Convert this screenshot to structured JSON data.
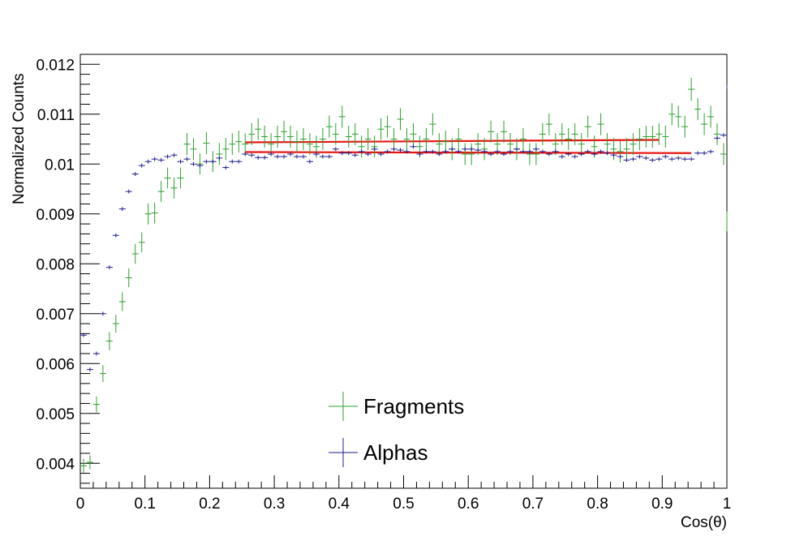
{
  "chart_data": {
    "type": "scatter",
    "xlabel": "Cos(θ)",
    "ylabel": "Normalized Counts",
    "xlim": [
      0,
      1
    ],
    "ylim": [
      0.0035,
      0.0122
    ],
    "x_ticks": [
      "0",
      "0.1",
      "0.2",
      "0.3",
      "0.4",
      "0.5",
      "0.6",
      "0.7",
      "0.8",
      "0.9",
      "1"
    ],
    "y_ticks": [
      "0.004",
      "0.005",
      "0.006",
      "0.007",
      "0.008",
      "0.009",
      "0.01",
      "0.011",
      "0.012"
    ],
    "bin_width": 0.01,
    "legend_position": "bottom-center",
    "series": [
      {
        "name": "Fragments",
        "color": "#2ca02c",
        "values": [
          0.00395,
          0.00402,
          0.00518,
          0.0058,
          0.00645,
          0.0068,
          0.00724,
          0.00772,
          0.0082,
          0.00843,
          0.009,
          0.00902,
          0.00945,
          0.00972,
          0.00952,
          0.00972,
          0.0104,
          0.0103,
          0.01,
          0.01042,
          0.01005,
          0.0102,
          0.0103,
          0.0104,
          0.01045,
          0.0104,
          0.0106,
          0.0107,
          0.01055,
          0.0104,
          0.01055,
          0.01065,
          0.01055,
          0.01045,
          0.0105,
          0.0104,
          0.01035,
          0.0105,
          0.01075,
          0.0106,
          0.01095,
          0.01055,
          0.0106,
          0.01035,
          0.0105,
          0.01035,
          0.0107,
          0.01075,
          0.0105,
          0.0109,
          0.0105,
          0.0106,
          0.01035,
          0.0105,
          0.0108,
          0.0104,
          0.01045,
          0.0103,
          0.0105,
          0.0102,
          0.0102,
          0.0104,
          0.0103,
          0.01065,
          0.0104,
          0.01065,
          0.0104,
          0.0103,
          0.0105,
          0.0102,
          0.0102,
          0.0106,
          0.0108,
          0.0104,
          0.0106,
          0.0105,
          0.0106,
          0.0104,
          0.01075,
          0.01035,
          0.0108,
          0.0104,
          0.0103,
          0.01025,
          0.0103,
          0.0104,
          0.0105,
          0.01055,
          0.01055,
          0.0106,
          0.01055,
          0.011,
          0.01095,
          0.01075,
          0.0115,
          0.0111,
          0.0108,
          0.01095,
          0.0106,
          0.0102,
          0.00885
        ],
        "errors": [
          0.00014,
          0.00014,
          0.00016,
          0.00017,
          0.00018,
          0.00018,
          0.00019,
          0.00019,
          0.0002,
          0.0002,
          0.00021,
          0.00021,
          0.00021,
          0.00021,
          0.00021,
          0.00021,
          0.00022,
          0.00022,
          0.00021,
          0.00022,
          0.00021,
          0.00022,
          0.00022,
          0.00022,
          0.00022,
          0.00022,
          0.00022,
          0.00022,
          0.00022,
          0.00022,
          0.00022,
          0.00022,
          0.00022,
          0.00022,
          0.00022,
          0.00022,
          0.00022,
          0.00022,
          0.00022,
          0.00022,
          0.00022,
          0.00022,
          0.00022,
          0.00022,
          0.00022,
          0.00022,
          0.00022,
          0.00022,
          0.00022,
          0.00022,
          0.00022,
          0.00022,
          0.00022,
          0.00022,
          0.00022,
          0.00022,
          0.00022,
          0.00022,
          0.00022,
          0.00022,
          0.00022,
          0.00022,
          0.00022,
          0.00022,
          0.00022,
          0.00022,
          0.00022,
          0.00022,
          0.00022,
          0.00022,
          0.00022,
          0.00022,
          0.00022,
          0.00022,
          0.00022,
          0.00022,
          0.00022,
          0.00022,
          0.00022,
          0.00022,
          0.00022,
          0.00022,
          0.00022,
          0.00022,
          0.00022,
          0.00022,
          0.00022,
          0.00022,
          0.00022,
          0.00022,
          0.00022,
          0.00022,
          0.00022,
          0.00022,
          0.00023,
          0.00022,
          0.00022,
          0.00022,
          0.00022,
          0.00022,
          0.0002
        ]
      },
      {
        "name": "Alphas",
        "color": "#1c1c8c",
        "values": [
          0.00657,
          0.00588,
          0.0062,
          0.007,
          0.00793,
          0.00857,
          0.0091,
          0.00945,
          0.0098,
          0.00997,
          0.01005,
          0.0101,
          0.01008,
          0.01015,
          0.01018,
          0.01005,
          0.0101,
          0.01,
          0.00997,
          0.01005,
          0.01005,
          0.01012,
          0.00993,
          0.01005,
          0.01005,
          0.0102,
          0.01018,
          0.01013,
          0.01013,
          0.0102,
          0.01015,
          0.01015,
          0.0102,
          0.01015,
          0.01015,
          0.01005,
          0.0102,
          0.01015,
          0.01015,
          0.0103,
          0.01022,
          0.01022,
          0.01018,
          0.01025,
          0.0102,
          0.0103,
          0.0102,
          0.01025,
          0.0103,
          0.01028,
          0.01025,
          0.01035,
          0.0102,
          0.01025,
          0.01025,
          0.0102,
          0.01025,
          0.0103,
          0.01025,
          0.0103,
          0.0103,
          0.01028,
          0.01025,
          0.0102,
          0.01025,
          0.0102,
          0.01025,
          0.0103,
          0.01025,
          0.01025,
          0.0103,
          0.01025,
          0.0102,
          0.01025,
          0.01015,
          0.0102,
          0.01015,
          0.0102,
          0.01025,
          0.0102,
          0.01025,
          0.01022,
          0.01018,
          0.01015,
          0.01008,
          0.0101,
          0.01015,
          0.01012,
          0.01008,
          0.0101,
          0.01015,
          0.0101,
          0.01012,
          0.0101,
          0.0101,
          0.01022,
          0.01022,
          0.01025,
          0.01052,
          0.01058,
          0.01155
        ],
        "errors": [
          4e-05,
          4e-05,
          4e-05,
          4e-05,
          4e-05,
          4e-05,
          4e-05,
          4e-05,
          4e-05,
          4e-05,
          4e-05,
          4e-05,
          4e-05,
          4e-05,
          4e-05,
          4e-05,
          4e-05,
          4e-05,
          4e-05,
          4e-05,
          4e-05,
          4e-05,
          4e-05,
          4e-05,
          4e-05,
          4e-05,
          4e-05,
          4e-05,
          4e-05,
          4e-05,
          4e-05,
          4e-05,
          4e-05,
          4e-05,
          4e-05,
          4e-05,
          4e-05,
          4e-05,
          4e-05,
          4e-05,
          4e-05,
          4e-05,
          4e-05,
          4e-05,
          4e-05,
          4e-05,
          4e-05,
          4e-05,
          4e-05,
          4e-05,
          4e-05,
          4e-05,
          4e-05,
          4e-05,
          4e-05,
          4e-05,
          4e-05,
          4e-05,
          4e-05,
          4e-05,
          4e-05,
          4e-05,
          4e-05,
          4e-05,
          4e-05,
          4e-05,
          4e-05,
          4e-05,
          4e-05,
          4e-05,
          4e-05,
          4e-05,
          4e-05,
          4e-05,
          4e-05,
          4e-05,
          4e-05,
          4e-05,
          4e-05,
          4e-05,
          4e-05,
          4e-05,
          4e-05,
          4e-05,
          4e-05,
          4e-05,
          4e-05,
          4e-05,
          4e-05,
          4e-05,
          4e-05,
          4e-05,
          4e-05,
          4e-05,
          4e-05,
          4e-05,
          4e-05,
          4e-05,
          4e-05,
          4e-05,
          4e-05
        ]
      }
    ],
    "fits": [
      {
        "color": "#e8140f",
        "x_range": [
          0.255,
          0.895
        ],
        "y_start": 0.010435,
        "y_end": 0.010485
      },
      {
        "color": "#e8140f",
        "x_range": [
          0.255,
          0.945
        ],
        "y_start": 0.01024,
        "y_end": 0.01022
      }
    ]
  }
}
